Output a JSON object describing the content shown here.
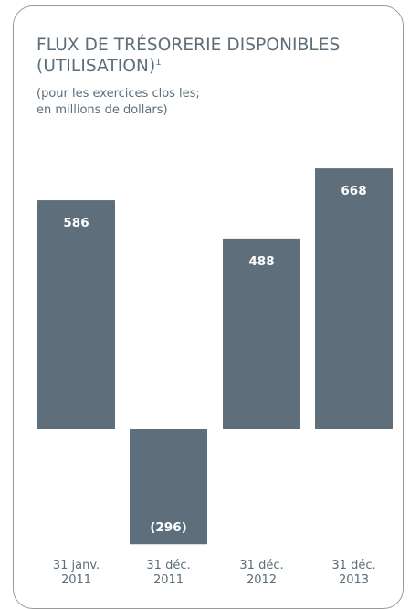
{
  "chart_data": {
    "type": "bar",
    "title_main": "FLUX DE TRÉSORERIE DISPONIBLES",
    "title_second": "(UTILISATION)",
    "title_footnote": "1",
    "subtitle_line1": "(pour les exercices clos les;",
    "subtitle_line2": "en millions de dollars)",
    "categories": [
      [
        "31 janv.",
        "2011"
      ],
      [
        "31 déc.",
        "2011"
      ],
      [
        "31 déc.",
        "2012"
      ],
      [
        "31 déc.",
        "2013"
      ]
    ],
    "values": [
      586,
      -296,
      488,
      668
    ],
    "value_labels": [
      "586",
      "(296)",
      "488",
      "668"
    ],
    "bar_color": "#5e6f7b",
    "text_color": "#5b6e7a",
    "ylim": [
      -350,
      700
    ],
    "grid": false,
    "legend": "none"
  }
}
